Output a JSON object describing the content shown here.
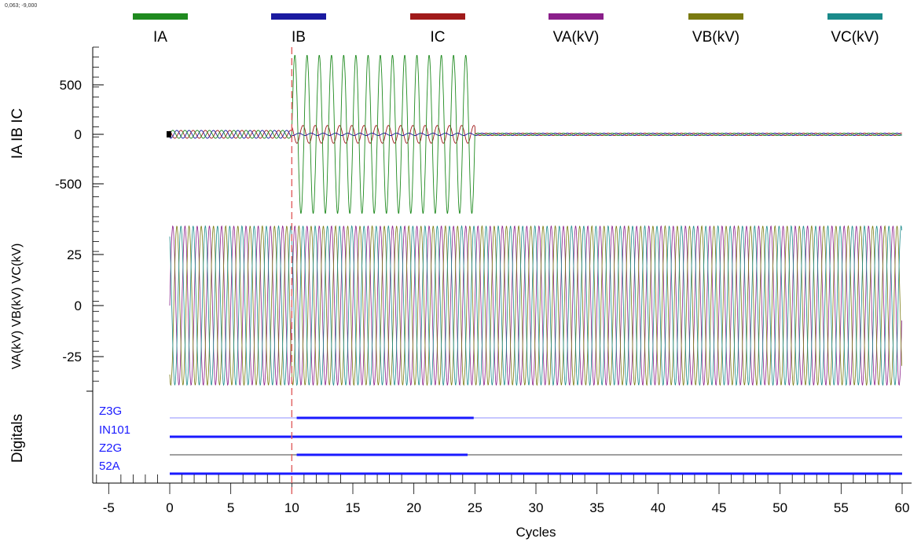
{
  "cursor_readout": "0,063; -9,000",
  "colors": {
    "IA": "#1f8a1f",
    "IB": "#1a1aa0",
    "IC": "#a01a1a",
    "VA": "#8a1f8a",
    "VB": "#7a7a10",
    "VC": "#1a8a8a",
    "digital": "#1a1aff",
    "marker": "#e06060"
  },
  "chart_data": {
    "type": "line",
    "legend": {
      "placement": "top",
      "entries": [
        {
          "key": "IA",
          "label": "IA"
        },
        {
          "key": "IB",
          "label": "IB"
        },
        {
          "key": "IC",
          "label": "IC"
        },
        {
          "key": "VA",
          "label": "VA(kV)"
        },
        {
          "key": "VB",
          "label": "VB(kV)"
        },
        {
          "key": "VC",
          "label": "VC(kV)"
        }
      ]
    },
    "xlabel": "Cycles",
    "xlim": [
      -6.5,
      60.5
    ],
    "xticks": [
      -5,
      0,
      5,
      10,
      15,
      20,
      25,
      30,
      35,
      40,
      45,
      50,
      55,
      60
    ],
    "cursor_marker_x": 10,
    "panels": [
      {
        "id": "currents",
        "ylabel": "IA IB IC",
        "ylim": [
          -860,
          860
        ],
        "yticks": [
          500,
          0,
          -500
        ],
        "series": [
          {
            "name": "IA",
            "prefault_amplitude": 40,
            "fault_amplitude": 800,
            "postfault_amplitude": 12
          },
          {
            "name": "IB",
            "prefault_amplitude": 40,
            "fault_amplitude": 12,
            "postfault_amplitude": 12
          },
          {
            "name": "IC",
            "prefault_amplitude": 40,
            "fault_amplitude": 90,
            "postfault_amplitude": 12
          }
        ],
        "fault_start_cycle": 10,
        "fault_end_cycle": 25,
        "record_start_cycle": 0,
        "record_end_cycle": 60
      },
      {
        "id": "voltages",
        "ylabel": "VA(kV) VB(kV) VC(kV)",
        "ylim": [
          -42,
          42
        ],
        "yticks": [
          25,
          0,
          -25
        ],
        "series": [
          {
            "name": "VA(kV)",
            "amplitude": 39
          },
          {
            "name": "VB(kV)",
            "amplitude": 39
          },
          {
            "name": "VC(kV)",
            "amplitude": 39
          }
        ]
      },
      {
        "id": "digitals",
        "ylabel": "Digitals",
        "channels": [
          {
            "name": "Z3G",
            "active": [
              [
                10.4,
                24.9
              ]
            ]
          },
          {
            "name": "IN101",
            "active": [
              [
                0,
                60
              ]
            ]
          },
          {
            "name": "Z2G",
            "active": [
              [
                10.4,
                24.4
              ]
            ]
          },
          {
            "name": "52A",
            "active": [
              [
                0,
                60
              ]
            ]
          }
        ]
      }
    ]
  }
}
